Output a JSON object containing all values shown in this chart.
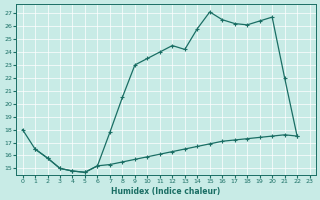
{
  "xlabel": "Humidex (Indice chaleur)",
  "bg_color": "#c8ebe6",
  "line_color": "#1a6e64",
  "grid_color": "#ffffff",
  "xlim": [
    -0.5,
    23.5
  ],
  "ylim": [
    14.5,
    27.7
  ],
  "xticks": [
    0,
    1,
    2,
    3,
    4,
    5,
    6,
    7,
    8,
    9,
    10,
    11,
    12,
    13,
    14,
    15,
    16,
    17,
    18,
    19,
    20,
    21,
    22,
    23
  ],
  "yticks": [
    15,
    16,
    17,
    18,
    19,
    20,
    21,
    22,
    23,
    24,
    25,
    26,
    27
  ],
  "line1_x": [
    0,
    1,
    2,
    3,
    4,
    5,
    6,
    7,
    8,
    9,
    10,
    11,
    12,
    13,
    14,
    15,
    16,
    17,
    18,
    19,
    20,
    21,
    22
  ],
  "line1_y": [
    18.0,
    16.5,
    15.8,
    15.0,
    14.8,
    14.7,
    15.2,
    17.8,
    20.5,
    23.0,
    23.5,
    24.0,
    24.5,
    24.2,
    25.8,
    27.1,
    26.5,
    26.2,
    26.1,
    26.4,
    26.7,
    22.0,
    17.5
  ],
  "line2_x": [
    1,
    2,
    3,
    4,
    5,
    6,
    7,
    8,
    9,
    10,
    11,
    12,
    13,
    14,
    15,
    16,
    17,
    18,
    19,
    20,
    21,
    22
  ],
  "line2_y": [
    16.5,
    15.8,
    15.0,
    14.8,
    14.7,
    15.2,
    15.3,
    15.5,
    15.7,
    15.9,
    16.1,
    16.3,
    16.5,
    16.7,
    16.9,
    17.1,
    17.2,
    17.3,
    17.4,
    17.5,
    17.6,
    17.5
  ]
}
